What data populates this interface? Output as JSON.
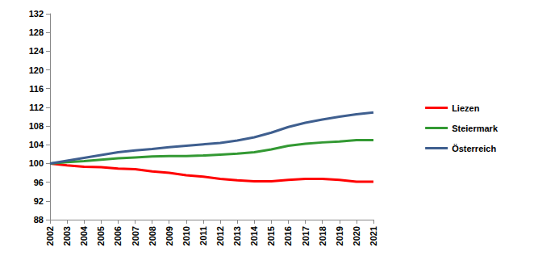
{
  "chart_data": {
    "type": "line",
    "categories": [
      "2002",
      "2003",
      "2004",
      "2005",
      "2006",
      "2007",
      "2008",
      "2009",
      "2010",
      "2011",
      "2012",
      "2013",
      "2014",
      "2015",
      "2016",
      "2017",
      "2018",
      "2019",
      "2020",
      "2021"
    ],
    "series": [
      {
        "name": "Liezen",
        "color": "#ff0000",
        "values": [
          100,
          99.6,
          99.3,
          99.2,
          98.9,
          98.8,
          98.3,
          98.0,
          97.5,
          97.2,
          96.7,
          96.4,
          96.2,
          96.2,
          96.5,
          96.7,
          96.7,
          96.5,
          96.1,
          96.1
        ]
      },
      {
        "name": "Steiermark",
        "color": "#339933",
        "values": [
          100,
          100.3,
          100.5,
          100.8,
          101.1,
          101.3,
          101.5,
          101.6,
          101.6,
          101.7,
          101.9,
          102.1,
          102.4,
          103.0,
          103.8,
          104.2,
          104.5,
          104.7,
          105.0,
          105.0
        ]
      },
      {
        "name": "Österreich",
        "color": "#3f5f8f",
        "values": [
          100,
          100.6,
          101.2,
          101.8,
          102.4,
          102.8,
          103.1,
          103.5,
          103.8,
          104.1,
          104.4,
          104.9,
          105.6,
          106.6,
          107.8,
          108.7,
          109.4,
          110.0,
          110.5,
          110.9
        ]
      }
    ],
    "ylim": [
      88,
      132
    ],
    "yticks": [
      88,
      92,
      96,
      100,
      104,
      108,
      112,
      116,
      120,
      124,
      128,
      132
    ],
    "grid": false,
    "legend": "right"
  }
}
